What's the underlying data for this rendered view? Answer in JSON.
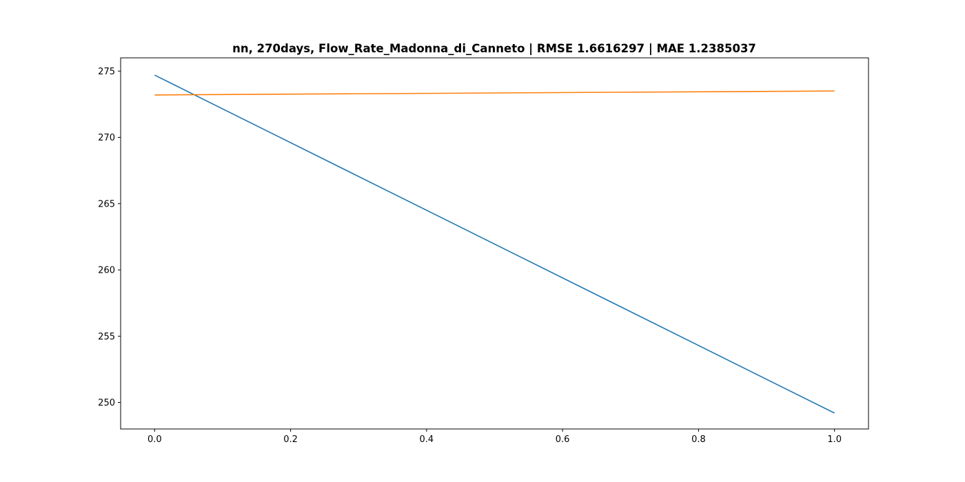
{
  "chart_data": {
    "type": "line",
    "title": "nn, 270days, Flow_Rate_Madonna_di_Canneto | RMSE 1.6616297 | MAE 1.2385037",
    "xlabel": "",
    "ylabel": "",
    "xlim": [
      -0.05,
      1.05
    ],
    "ylim": [
      248.0,
      276.0
    ],
    "xticks": [
      0.0,
      0.2,
      0.4,
      0.6,
      0.8,
      1.0
    ],
    "xtick_labels": [
      "0.0",
      "0.2",
      "0.4",
      "0.6",
      "0.8",
      "1.0"
    ],
    "yticks": [
      250,
      255,
      260,
      265,
      270,
      275
    ],
    "ytick_labels": [
      "250",
      "255",
      "260",
      "265",
      "270",
      "275"
    ],
    "grid": false,
    "legend": "none",
    "series": [
      {
        "color": "#1f77b4",
        "x": [
          0.0,
          1.0
        ],
        "y": [
          274.7,
          249.2
        ]
      },
      {
        "color": "#ff7f0e",
        "x": [
          0.0,
          1.0
        ],
        "y": [
          273.2,
          273.5
        ]
      }
    ]
  }
}
